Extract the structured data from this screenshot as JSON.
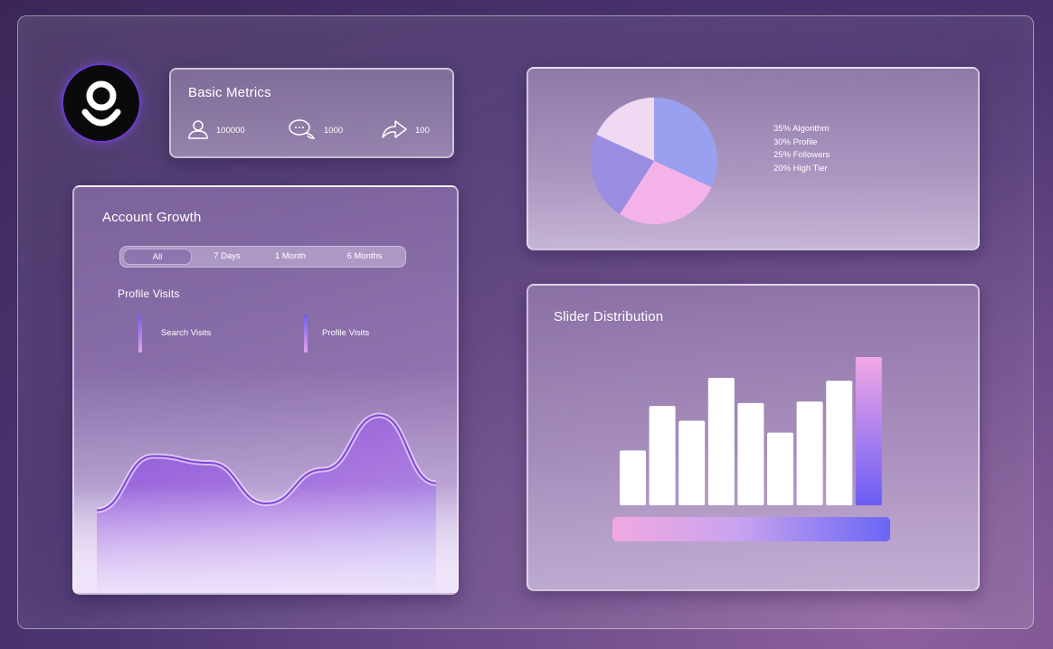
{
  "logo": {
    "icon": "g-logo-icon"
  },
  "basic_metrics": {
    "title": "Basic Metrics",
    "items": [
      {
        "icon": "user-icon",
        "value": "100000"
      },
      {
        "icon": "comments-icon",
        "value": "1000"
      },
      {
        "icon": "share-icon",
        "value": "100"
      }
    ]
  },
  "growth": {
    "title": "Account Growth",
    "tabs": [
      {
        "label": "All",
        "active": true
      },
      {
        "label": "7 Days",
        "active": false
      },
      {
        "label": "1 Month",
        "active": false
      },
      {
        "label": "6 Months",
        "active": false
      }
    ],
    "subtitle": "Profile Visits",
    "legend": [
      "Search Visits",
      "Profile Visits"
    ]
  },
  "pie": {
    "legend": [
      "35% Algorithm",
      "30% Profile",
      "25% Followers",
      "20% High Tier"
    ],
    "colors": [
      "#9aa0f0",
      "#f3b3e8",
      "#9a8ee2",
      "#f0d9f2"
    ]
  },
  "slider": {
    "title": "Slider Distribution",
    "bar_color": "#ffffff",
    "highlight_gradient": [
      "#f2a8e6",
      "#6a5cf5"
    ],
    "level": 1.0
  },
  "chart_data": [
    {
      "type": "area",
      "x": [
        0,
        1,
        2,
        3,
        4,
        5,
        6
      ],
      "values": [
        0.15,
        0.55,
        0.5,
        0.2,
        0.45,
        0.85,
        0.35
      ],
      "xlabel": "",
      "ylabel": ""
    },
    {
      "type": "pie",
      "categories": [
        "Algorithm",
        "Profile",
        "Followers",
        "High Tier"
      ],
      "values": [
        35,
        30,
        25,
        20
      ]
    },
    {
      "type": "bar",
      "categories": [
        "1",
        "2",
        "3",
        "4",
        "5",
        "6",
        "7",
        "8",
        "9"
      ],
      "values": [
        37,
        67,
        57,
        86,
        69,
        49,
        70,
        84,
        100
      ],
      "ylim": [
        0,
        100
      ],
      "highlight_index": 8
    }
  ]
}
